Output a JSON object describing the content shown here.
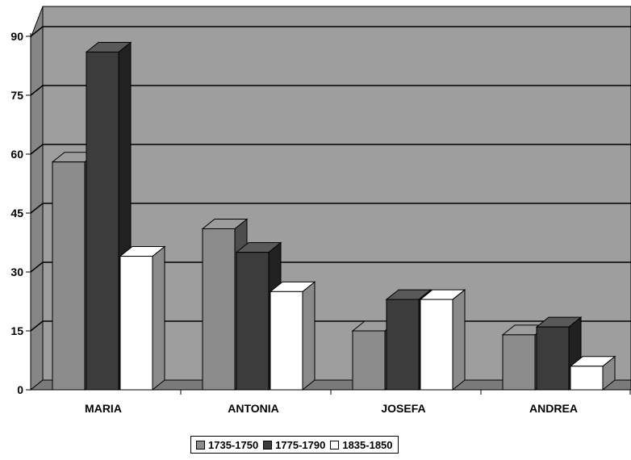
{
  "chart_data": {
    "type": "bar",
    "categories": [
      "MARIA",
      "ANTONIA",
      "JOSEFA",
      "ANDREA"
    ],
    "series": [
      {
        "name": "1735-1750",
        "values": [
          58,
          41,
          15,
          14
        ],
        "color": "#8c8c8c"
      },
      {
        "name": "1775-1790",
        "values": [
          86,
          35,
          23,
          16
        ],
        "color": "#3c3c3c"
      },
      {
        "name": "1835-1850",
        "values": [
          34,
          25,
          23,
          6
        ],
        "color": "#ffffff"
      }
    ],
    "title": "",
    "xlabel": "",
    "ylabel": "",
    "yticks": [
      "0",
      "15",
      "30",
      "45",
      "60",
      "75",
      "90"
    ],
    "ylim": [
      0,
      90
    ],
    "grid": true,
    "legend": "bottom-center",
    "colors": {
      "wall": "#9e9e9e",
      "floor": "#7a7a7a",
      "gridline": "#000000"
    }
  }
}
